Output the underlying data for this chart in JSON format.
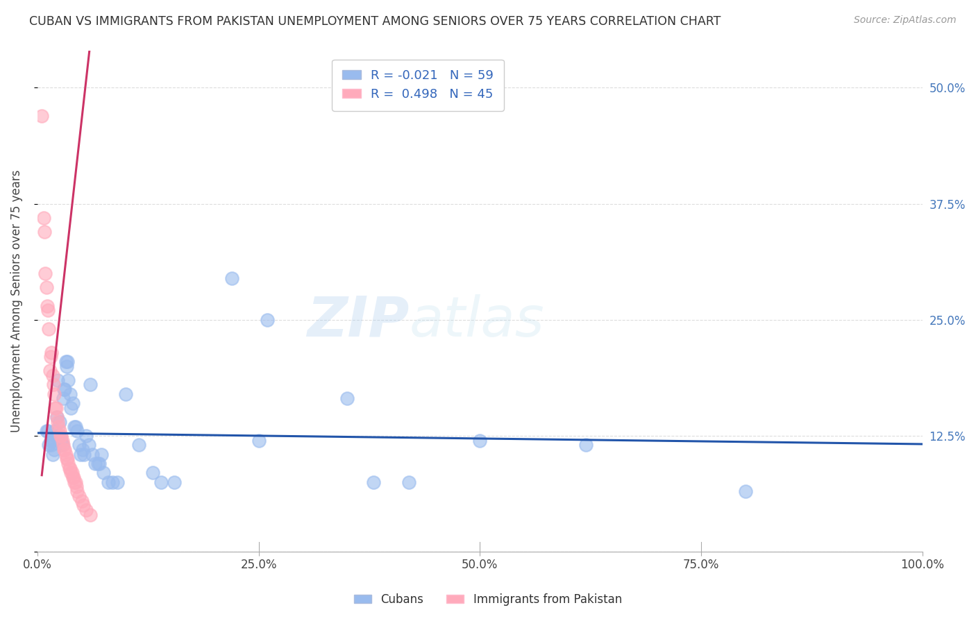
{
  "title": "CUBAN VS IMMIGRANTS FROM PAKISTAN UNEMPLOYMENT AMONG SENIORS OVER 75 YEARS CORRELATION CHART",
  "source": "Source: ZipAtlas.com",
  "ylabel": "Unemployment Among Seniors over 75 years",
  "xlabel": "",
  "legend_cubans": "Cubans",
  "legend_pakistan": "Immigrants from Pakistan",
  "cubans_R": -0.021,
  "cubans_N": 59,
  "pakistan_R": 0.498,
  "pakistan_N": 45,
  "blue_color": "#99BBEE",
  "pink_color": "#FFAABB",
  "blue_line_color": "#2255AA",
  "pink_line_color": "#CC3366",
  "blue_scatter": [
    [
      0.01,
      0.13
    ],
    [
      0.012,
      0.13
    ],
    [
      0.013,
      0.115
    ],
    [
      0.015,
      0.12
    ],
    [
      0.016,
      0.115
    ],
    [
      0.017,
      0.105
    ],
    [
      0.018,
      0.12
    ],
    [
      0.019,
      0.11
    ],
    [
      0.02,
      0.13
    ],
    [
      0.021,
      0.125
    ],
    [
      0.022,
      0.145
    ],
    [
      0.023,
      0.185
    ],
    [
      0.024,
      0.125
    ],
    [
      0.025,
      0.14
    ],
    [
      0.027,
      0.12
    ],
    [
      0.028,
      0.115
    ],
    [
      0.029,
      0.165
    ],
    [
      0.03,
      0.175
    ],
    [
      0.031,
      0.175
    ],
    [
      0.032,
      0.205
    ],
    [
      0.033,
      0.2
    ],
    [
      0.034,
      0.205
    ],
    [
      0.035,
      0.185
    ],
    [
      0.037,
      0.17
    ],
    [
      0.038,
      0.155
    ],
    [
      0.04,
      0.16
    ],
    [
      0.042,
      0.135
    ],
    [
      0.043,
      0.135
    ],
    [
      0.045,
      0.13
    ],
    [
      0.047,
      0.115
    ],
    [
      0.049,
      0.105
    ],
    [
      0.051,
      0.11
    ],
    [
      0.053,
      0.105
    ],
    [
      0.055,
      0.125
    ],
    [
      0.058,
      0.115
    ],
    [
      0.06,
      0.18
    ],
    [
      0.062,
      0.105
    ],
    [
      0.065,
      0.095
    ],
    [
      0.068,
      0.095
    ],
    [
      0.07,
      0.095
    ],
    [
      0.072,
      0.105
    ],
    [
      0.075,
      0.085
    ],
    [
      0.08,
      0.075
    ],
    [
      0.085,
      0.075
    ],
    [
      0.09,
      0.075
    ],
    [
      0.1,
      0.17
    ],
    [
      0.115,
      0.115
    ],
    [
      0.13,
      0.085
    ],
    [
      0.14,
      0.075
    ],
    [
      0.155,
      0.075
    ],
    [
      0.22,
      0.295
    ],
    [
      0.25,
      0.12
    ],
    [
      0.26,
      0.25
    ],
    [
      0.35,
      0.165
    ],
    [
      0.38,
      0.075
    ],
    [
      0.42,
      0.075
    ],
    [
      0.5,
      0.12
    ],
    [
      0.62,
      0.115
    ],
    [
      0.8,
      0.065
    ]
  ],
  "pakistan_scatter": [
    [
      0.005,
      0.47
    ],
    [
      0.007,
      0.36
    ],
    [
      0.008,
      0.345
    ],
    [
      0.009,
      0.3
    ],
    [
      0.01,
      0.285
    ],
    [
      0.011,
      0.265
    ],
    [
      0.012,
      0.26
    ],
    [
      0.013,
      0.24
    ],
    [
      0.014,
      0.195
    ],
    [
      0.015,
      0.21
    ],
    [
      0.016,
      0.215
    ],
    [
      0.017,
      0.19
    ],
    [
      0.018,
      0.18
    ],
    [
      0.019,
      0.17
    ],
    [
      0.02,
      0.155
    ],
    [
      0.021,
      0.155
    ],
    [
      0.022,
      0.145
    ],
    [
      0.023,
      0.14
    ],
    [
      0.024,
      0.135
    ],
    [
      0.025,
      0.13
    ],
    [
      0.026,
      0.125
    ],
    [
      0.027,
      0.125
    ],
    [
      0.028,
      0.12
    ],
    [
      0.029,
      0.115
    ],
    [
      0.03,
      0.11
    ],
    [
      0.031,
      0.11
    ],
    [
      0.032,
      0.105
    ],
    [
      0.033,
      0.1
    ],
    [
      0.034,
      0.1
    ],
    [
      0.035,
      0.095
    ],
    [
      0.036,
      0.09
    ],
    [
      0.037,
      0.09
    ],
    [
      0.038,
      0.085
    ],
    [
      0.039,
      0.085
    ],
    [
      0.04,
      0.08
    ],
    [
      0.041,
      0.08
    ],
    [
      0.042,
      0.075
    ],
    [
      0.043,
      0.075
    ],
    [
      0.044,
      0.07
    ],
    [
      0.045,
      0.065
    ],
    [
      0.047,
      0.06
    ],
    [
      0.05,
      0.055
    ],
    [
      0.052,
      0.05
    ],
    [
      0.055,
      0.045
    ],
    [
      0.06,
      0.04
    ]
  ],
  "xlim": [
    0.0,
    1.0
  ],
  "ylim": [
    0.0,
    0.54
  ],
  "xticks": [
    0.0,
    0.25,
    0.5,
    0.75,
    1.0
  ],
  "yticks": [
    0.0,
    0.125,
    0.25,
    0.375,
    0.5
  ],
  "xticklabels": [
    "0.0%",
    "25.0%",
    "50.0%",
    "75.0%",
    "100.0%"
  ],
  "yticklabels_right": [
    "",
    "12.5%",
    "25.0%",
    "37.5%",
    "50.0%"
  ],
  "watermark_zip": "ZIP",
  "watermark_atlas": "atlas",
  "background_color": "#FFFFFF",
  "grid_color": "#DDDDDD",
  "blue_trend_slope": -0.012,
  "blue_trend_intercept": 0.128,
  "pink_trend_slope": 8.5,
  "pink_trend_intercept": 0.04
}
